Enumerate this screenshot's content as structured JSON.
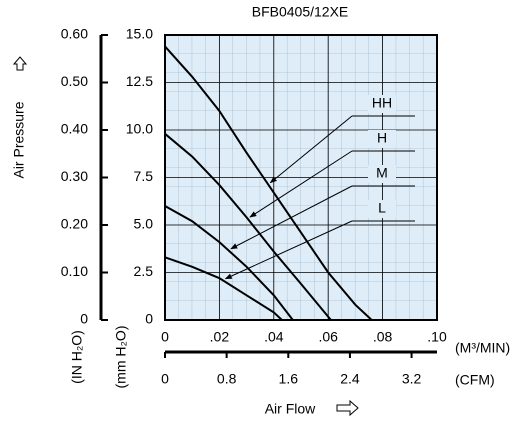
{
  "chart_data": {
    "type": "line",
    "title": "BFB0405/12XE",
    "x_label": "Air Flow",
    "y_label": "Air Pressure",
    "x_unit": "(M³/MIN)",
    "x2_unit": "(CFM)",
    "y_unit": "(mm H₂O)",
    "y2_unit": "(IN H₂O)",
    "xlim": [
      0,
      0.1
    ],
    "xticks": [
      0,
      {
        "value": 0.02,
        "label": ".02"
      },
      {
        "value": 0.04,
        "label": ".04"
      },
      {
        "value": 0.06,
        "label": ".06"
      },
      {
        "value": 0.08,
        "label": ".08"
      },
      {
        "value": 0.1,
        "label": ".10"
      }
    ],
    "x2lim": [
      0,
      3.53
    ],
    "x2ticks": [
      0,
      0.8,
      1.6,
      2.4,
      3.2
    ],
    "ylim": [
      0,
      15
    ],
    "yticks": [
      0,
      2.5,
      {
        "value": 5,
        "label": "5.0"
      },
      7.5,
      {
        "value": 10,
        "label": "10.0"
      },
      12.5,
      {
        "value": 15,
        "label": "15.0"
      }
    ],
    "y2lim": [
      0,
      0.6
    ],
    "y2ticks": [
      0,
      {
        "value": 0.1,
        "label": "0.10"
      },
      {
        "value": 0.2,
        "label": "0.20"
      },
      {
        "value": 0.3,
        "label": "0.30"
      },
      {
        "value": 0.4,
        "label": "0.40"
      },
      {
        "value": 0.5,
        "label": "0.50"
      },
      {
        "value": 0.6,
        "label": "0.60"
      }
    ],
    "background": "#deedf8",
    "series": [
      {
        "name": "HH",
        "color": "#000000",
        "x": [
          0,
          0.01,
          0.02,
          0.03,
          0.04,
          0.05,
          0.06,
          0.07,
          0.076
        ],
        "values": [
          14.4,
          12.8,
          11,
          8.8,
          6.7,
          4.6,
          2.5,
          0.8,
          0
        ]
      },
      {
        "name": "H",
        "color": "#000000",
        "x": [
          0,
          0.01,
          0.02,
          0.03,
          0.04,
          0.05,
          0.061
        ],
        "values": [
          9.8,
          8.6,
          7.1,
          5.4,
          3.6,
          1.9,
          0
        ]
      },
      {
        "name": "M",
        "color": "#000000",
        "x": [
          0,
          0.01,
          0.02,
          0.03,
          0.04,
          0.047
        ],
        "values": [
          6.0,
          5.2,
          4.1,
          2.8,
          1.3,
          0
        ]
      },
      {
        "name": "L",
        "color": "#000000",
        "x": [
          0,
          0.01,
          0.02,
          0.03,
          0.04,
          0.043
        ],
        "values": [
          3.3,
          2.8,
          2.2,
          1.3,
          0.4,
          0
        ]
      }
    ]
  }
}
